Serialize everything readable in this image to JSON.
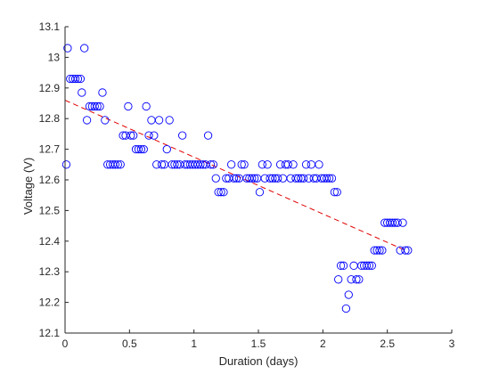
{
  "chart_data": {
    "type": "scatter",
    "title": "",
    "xlabel": "Duration (days)",
    "ylabel": "Voltage (V)",
    "xlim": [
      0,
      3
    ],
    "ylim": [
      12.1,
      13.1
    ],
    "xticks": [
      0,
      0.5,
      1,
      1.5,
      2,
      2.5,
      3
    ],
    "xtick_labels": [
      "0",
      "0.5",
      "1",
      "1.5",
      "2",
      "2.5",
      "3"
    ],
    "yticks": [
      12.1,
      12.2,
      12.3,
      12.4,
      12.5,
      12.6,
      12.7,
      12.8,
      12.9,
      13.0,
      13.1
    ],
    "ytick_labels": [
      "12.1",
      "12.2",
      "12.3",
      "12.4",
      "12.5",
      "12.6",
      "12.7",
      "12.8",
      "12.9",
      "13",
      "13.1"
    ],
    "grid": false,
    "legend": "none",
    "series": [
      {
        "marker": "circle-open",
        "color": "#0000ff",
        "points": [
          [
            0.01,
            12.65
          ],
          [
            0.02,
            13.03
          ],
          [
            0.04,
            12.93
          ],
          [
            0.06,
            12.93
          ],
          [
            0.08,
            12.93
          ],
          [
            0.1,
            12.93
          ],
          [
            0.12,
            12.93
          ],
          [
            0.13,
            12.885
          ],
          [
            0.15,
            13.03
          ],
          [
            0.17,
            12.795
          ],
          [
            0.19,
            12.84
          ],
          [
            0.21,
            12.84
          ],
          [
            0.23,
            12.84
          ],
          [
            0.25,
            12.84
          ],
          [
            0.27,
            12.84
          ],
          [
            0.29,
            12.885
          ],
          [
            0.31,
            12.795
          ],
          [
            0.33,
            12.65
          ],
          [
            0.35,
            12.65
          ],
          [
            0.37,
            12.65
          ],
          [
            0.39,
            12.65
          ],
          [
            0.41,
            12.65
          ],
          [
            0.43,
            12.65
          ],
          [
            0.45,
            12.745
          ],
          [
            0.47,
            12.745
          ],
          [
            0.49,
            12.84
          ],
          [
            0.51,
            12.745
          ],
          [
            0.53,
            12.745
          ],
          [
            0.55,
            12.7
          ],
          [
            0.57,
            12.7
          ],
          [
            0.59,
            12.7
          ],
          [
            0.61,
            12.7
          ],
          [
            0.63,
            12.84
          ],
          [
            0.65,
            12.745
          ],
          [
            0.67,
            12.795
          ],
          [
            0.69,
            12.745
          ],
          [
            0.71,
            12.65
          ],
          [
            0.73,
            12.795
          ],
          [
            0.75,
            12.65
          ],
          [
            0.77,
            12.65
          ],
          [
            0.79,
            12.7
          ],
          [
            0.81,
            12.795
          ],
          [
            0.83,
            12.65
          ],
          [
            0.85,
            12.65
          ],
          [
            0.87,
            12.65
          ],
          [
            0.89,
            12.65
          ],
          [
            0.91,
            12.745
          ],
          [
            0.93,
            12.65
          ],
          [
            0.95,
            12.65
          ],
          [
            0.97,
            12.65
          ],
          [
            0.99,
            12.65
          ],
          [
            1.01,
            12.65
          ],
          [
            1.03,
            12.65
          ],
          [
            1.05,
            12.65
          ],
          [
            1.07,
            12.65
          ],
          [
            1.09,
            12.65
          ],
          [
            1.11,
            12.745
          ],
          [
            1.13,
            12.65
          ],
          [
            1.15,
            12.65
          ],
          [
            1.17,
            12.605
          ],
          [
            1.19,
            12.56
          ],
          [
            1.21,
            12.56
          ],
          [
            1.23,
            12.56
          ],
          [
            1.25,
            12.605
          ],
          [
            1.27,
            12.605
          ],
          [
            1.29,
            12.65
          ],
          [
            1.31,
            12.605
          ],
          [
            1.33,
            12.605
          ],
          [
            1.35,
            12.605
          ],
          [
            1.37,
            12.65
          ],
          [
            1.39,
            12.65
          ],
          [
            1.41,
            12.605
          ],
          [
            1.43,
            12.605
          ],
          [
            1.45,
            12.605
          ],
          [
            1.47,
            12.605
          ],
          [
            1.49,
            12.605
          ],
          [
            1.51,
            12.56
          ],
          [
            1.53,
            12.65
          ],
          [
            1.55,
            12.605
          ],
          [
            1.57,
            12.65
          ],
          [
            1.59,
            12.605
          ],
          [
            1.61,
            12.605
          ],
          [
            1.63,
            12.605
          ],
          [
            1.65,
            12.605
          ],
          [
            1.67,
            12.65
          ],
          [
            1.69,
            12.605
          ],
          [
            1.71,
            12.65
          ],
          [
            1.73,
            12.65
          ],
          [
            1.75,
            12.605
          ],
          [
            1.77,
            12.65
          ],
          [
            1.79,
            12.605
          ],
          [
            1.81,
            12.605
          ],
          [
            1.83,
            12.605
          ],
          [
            1.85,
            12.605
          ],
          [
            1.87,
            12.65
          ],
          [
            1.89,
            12.605
          ],
          [
            1.91,
            12.65
          ],
          [
            1.93,
            12.605
          ],
          [
            1.95,
            12.605
          ],
          [
            1.97,
            12.65
          ],
          [
            1.99,
            12.605
          ],
          [
            2.01,
            12.605
          ],
          [
            2.03,
            12.605
          ],
          [
            2.05,
            12.605
          ],
          [
            2.07,
            12.605
          ],
          [
            2.09,
            12.56
          ],
          [
            2.11,
            12.56
          ],
          [
            2.12,
            12.275
          ],
          [
            2.14,
            12.32
          ],
          [
            2.16,
            12.32
          ],
          [
            2.18,
            12.18
          ],
          [
            2.2,
            12.225
          ],
          [
            2.22,
            12.275
          ],
          [
            2.24,
            12.32
          ],
          [
            2.26,
            12.275
          ],
          [
            2.28,
            12.275
          ],
          [
            2.3,
            12.32
          ],
          [
            2.32,
            12.32
          ],
          [
            2.34,
            12.32
          ],
          [
            2.36,
            12.32
          ],
          [
            2.38,
            12.32
          ],
          [
            2.4,
            12.37
          ],
          [
            2.42,
            12.37
          ],
          [
            2.44,
            12.37
          ],
          [
            2.46,
            12.37
          ],
          [
            2.48,
            12.46
          ],
          [
            2.5,
            12.46
          ],
          [
            2.52,
            12.46
          ],
          [
            2.54,
            12.46
          ],
          [
            2.56,
            12.46
          ],
          [
            2.58,
            12.46
          ],
          [
            2.6,
            12.37
          ],
          [
            2.62,
            12.46
          ],
          [
            2.64,
            12.37
          ],
          [
            2.66,
            12.37
          ]
        ]
      }
    ],
    "trendline": {
      "style": "dashed",
      "color": "#e00000",
      "points": [
        [
          0,
          12.86
        ],
        [
          2.64,
          12.37
        ]
      ]
    }
  }
}
